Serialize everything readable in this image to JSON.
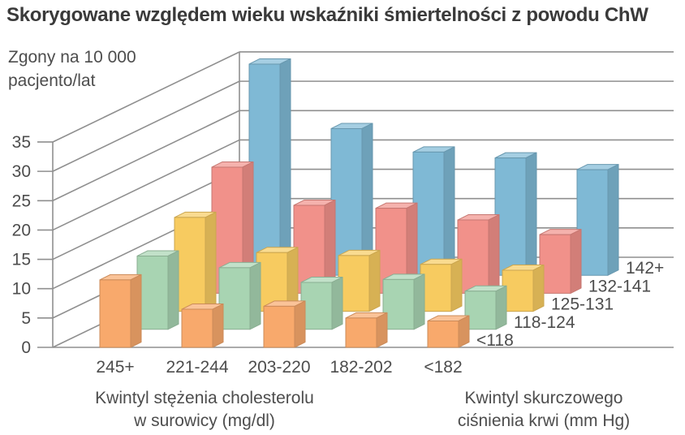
{
  "title": "Skorygowane względem wieku wskaźniki śmiertelności z powodu ChW",
  "unit_label": {
    "line1": "Zgony na 10 000",
    "line2": "pacjento/lat"
  },
  "captions": {
    "cholesterol": {
      "line1": "Kwintyl stężenia cholesterolu",
      "line2": "w surowicy (mg/dl)"
    },
    "pressure": {
      "line1": "Kwintyl skurczowego",
      "line2": "ciśnienia krwi (mm Hg)"
    }
  },
  "chart_data": {
    "type": "bar",
    "projection": "3d-oblique",
    "title": "Skorygowane względem wieku wskaźniki śmiertelności z powodu ChW",
    "ylabel": "Zgony na 10 000 pacjento/lat",
    "ylim": [
      0,
      35
    ],
    "yticks": [
      0,
      5,
      10,
      15,
      20,
      25,
      30,
      35
    ],
    "grid": true,
    "categories": [
      "245+",
      "221-244",
      "203-220",
      "182-202",
      "<182"
    ],
    "categories_axis_label": "Kwintyl stężenia cholesterolu w surowicy (mg/dl)",
    "series_axis_label": "Kwintyl skurczowego ciśnienia krwi (mm Hg)",
    "series": [
      {
        "name": "<118",
        "color": "#F8A96C",
        "values": [
          11.5,
          6.5,
          7,
          5,
          4.5
        ]
      },
      {
        "name": "118-124",
        "color": "#A8D4B2",
        "values": [
          12.5,
          10.5,
          8,
          8.5,
          6.5
        ]
      },
      {
        "name": "125-131",
        "color": "#F7CB60",
        "values": [
          16,
          10,
          9.5,
          8,
          7
        ]
      },
      {
        "name": "132-141",
        "color": "#F1918A",
        "values": [
          21.5,
          15,
          14.5,
          12.5,
          10
        ]
      },
      {
        "name": "142+",
        "color": "#7FB9D5",
        "values": [
          36,
          25,
          21,
          20,
          18
        ]
      }
    ],
    "grid_color": "#8f8f8f",
    "text_color": "#4d4d4d"
  }
}
